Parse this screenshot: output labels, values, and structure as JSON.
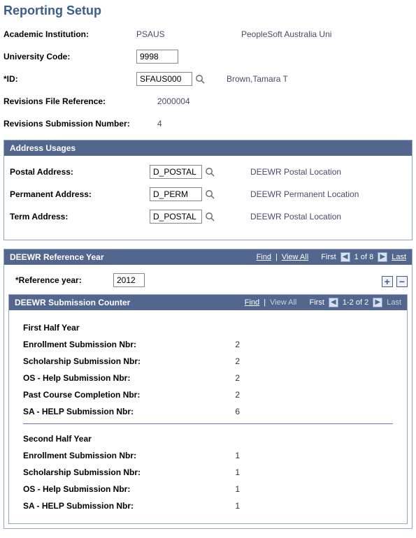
{
  "page_title": "Reporting Setup",
  "header": {
    "institution_label": "Academic Institution:",
    "institution_value": "PSAUS",
    "institution_desc": "PeopleSoft Australia Uni",
    "univcode_label": "University Code:",
    "univcode_value": "9998",
    "id_label": "*ID:",
    "id_value": "SFAUS000",
    "id_desc": "Brown,Tamara T",
    "revfile_label": "Revisions File Reference:",
    "revfile_value": "2000004",
    "revsub_label": "Revisions Submission Number:",
    "revsub_value": "4"
  },
  "address_section": {
    "title": "Address Usages",
    "rows": [
      {
        "label": "Postal Address:",
        "value": "D_POSTAL",
        "desc": "DEEWR Postal Location"
      },
      {
        "label": "Permanent Address:",
        "value": "D_PERM",
        "desc": "DEEWR Permanent Location"
      },
      {
        "label": "Term Address:",
        "value": "D_POSTAL",
        "desc": "DEEWR Postal Location"
      }
    ]
  },
  "deewr_year": {
    "title": "DEEWR Reference Year",
    "nav": {
      "find": "Find",
      "viewall": "View All",
      "first": "First",
      "range": "1 of 8",
      "last": "Last"
    },
    "ref_label": "*Reference year:",
    "ref_value": "2012"
  },
  "sub_counter": {
    "title": "DEEWR Submission Counter",
    "nav": {
      "find": "Find",
      "viewall": "View All",
      "first": "First",
      "range": "1-2 of 2",
      "last": "Last"
    },
    "first_half": {
      "label": "First Half Year",
      "rows": [
        {
          "label": "Enrollment Submission Nbr:",
          "value": "2"
        },
        {
          "label": "Scholarship Submission Nbr:",
          "value": "2"
        },
        {
          "label": "OS - Help Submission Nbr:",
          "value": "2"
        },
        {
          "label": "Past Course Completion Nbr:",
          "value": "2"
        },
        {
          "label": "SA - HELP Submission Nbr:",
          "value": "6"
        }
      ]
    },
    "second_half": {
      "label": "Second Half Year",
      "rows": [
        {
          "label": "Enrollment Submission Nbr:",
          "value": "1"
        },
        {
          "label": "Scholarship Submission Nbr:",
          "value": "1"
        },
        {
          "label": "OS - Help Submission Nbr:",
          "value": "1"
        },
        {
          "label": "SA - HELP Submission Nbr:",
          "value": "1"
        }
      ]
    }
  }
}
